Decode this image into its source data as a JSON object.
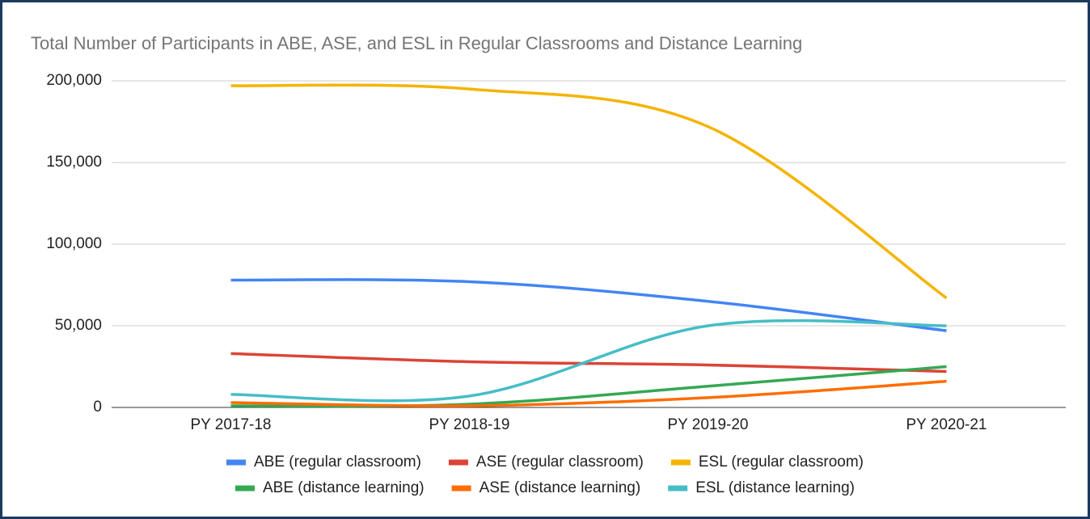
{
  "chart_data": {
    "type": "line",
    "title": "Total Number of Participants in ABE, ASE, and ESL in Regular Classrooms and Distance Learning",
    "categories": [
      "PY 2017-18",
      "PY 2018-19",
      "PY 2019-20",
      "PY 2020-21"
    ],
    "series": [
      {
        "name": "ABE (regular classroom)",
        "color": "#4285f4",
        "values": [
          78000,
          77000,
          65000,
          47000
        ]
      },
      {
        "name": "ASE (regular classroom)",
        "color": "#db4437",
        "values": [
          33000,
          28000,
          26000,
          22000
        ]
      },
      {
        "name": "ESL (regular classroom)",
        "color": "#f4b400",
        "values": [
          197000,
          195000,
          172000,
          67000
        ]
      },
      {
        "name": "ABE (distance learning)",
        "color": "#34a853",
        "values": [
          1000,
          2000,
          13000,
          25000
        ]
      },
      {
        "name": "ASE (distance learning)",
        "color": "#ff6d01",
        "values": [
          3000,
          1000,
          6000,
          16000
        ]
      },
      {
        "name": "ESL (distance learning)",
        "color": "#46bdc6",
        "values": [
          8000,
          7000,
          50000,
          50000
        ]
      }
    ],
    "ylim": [
      0,
      200000
    ],
    "yticks": [
      {
        "value": 0,
        "label": "0"
      },
      {
        "value": 50000,
        "label": "50,000"
      },
      {
        "value": 100000,
        "label": "100,000"
      },
      {
        "value": 150000,
        "label": "150,000"
      },
      {
        "value": 200000,
        "label": "200,000"
      }
    ],
    "grid": true,
    "smooth": true,
    "legend": "bottom"
  }
}
